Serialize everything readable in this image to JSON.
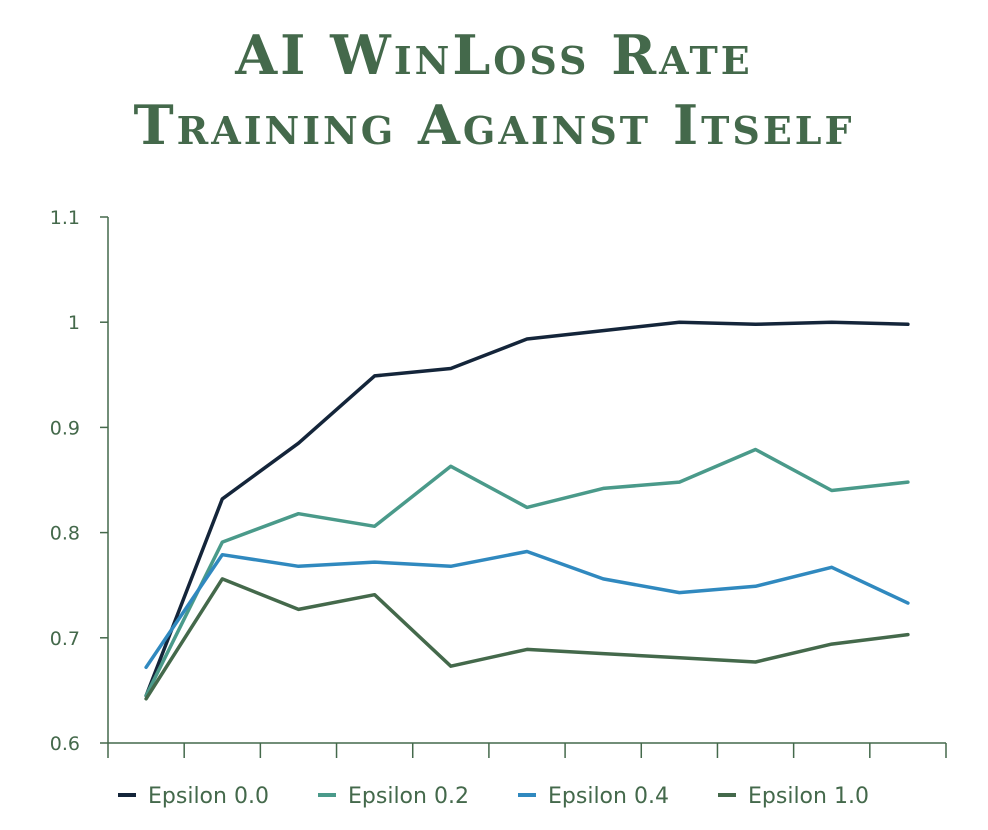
{
  "title_lines": [
    "AI WinLoss Rate",
    "Training Against Itself"
  ],
  "chart_data": {
    "type": "line",
    "title": "AI WinLoss Rate Training Against Itself",
    "xlabel": "",
    "ylabel": "",
    "x": [
      1,
      2,
      3,
      4,
      5,
      6,
      7,
      8,
      9,
      10,
      11
    ],
    "ylim": [
      0.6,
      1.1
    ],
    "yticks": [
      0.6,
      0.7,
      0.8,
      0.9,
      1,
      1.1
    ],
    "ytick_labels": [
      "0.6",
      "0.7",
      "0.8",
      "0.9",
      "1",
      "1.1"
    ],
    "grid": false,
    "legend_position": "bottom",
    "series": [
      {
        "name": "Epsilon 0.0",
        "color": "#14253a",
        "values": [
          0.645,
          0.832,
          0.885,
          0.949,
          0.956,
          0.984,
          0.992,
          1.0,
          0.998,
          1.0,
          0.998
        ]
      },
      {
        "name": "Epsilon 0.2",
        "color": "#4a9a8a",
        "values": [
          0.645,
          0.791,
          0.818,
          0.806,
          0.863,
          0.824,
          0.842,
          0.848,
          0.879,
          0.84,
          0.848
        ]
      },
      {
        "name": "Epsilon 0.4",
        "color": "#3089bf",
        "values": [
          0.672,
          0.779,
          0.768,
          0.772,
          0.768,
          0.782,
          0.756,
          0.743,
          0.749,
          0.767,
          0.733
        ]
      },
      {
        "name": "Epsilon 1.0",
        "color": "#44694b",
        "values": [
          0.642,
          0.756,
          0.727,
          0.741,
          0.673,
          0.689,
          0.685,
          0.681,
          0.677,
          0.694,
          0.703
        ]
      }
    ]
  }
}
